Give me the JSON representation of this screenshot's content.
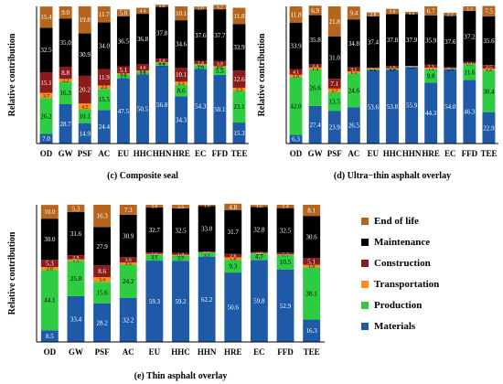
{
  "legend": {
    "items": [
      {
        "label": "End of life",
        "color": "#b5651d"
      },
      {
        "label": "Maintenance",
        "color": "#000000"
      },
      {
        "label": "Construction",
        "color": "#8b1a1a"
      },
      {
        "label": "Transportation",
        "color": "#ff8c1a"
      },
      {
        "label": "Production",
        "color": "#2ecc40"
      },
      {
        "label": "Materials",
        "color": "#1f5aa8"
      }
    ]
  },
  "chart_data": [
    {
      "type": "bar",
      "stacked": true,
      "title": "(c) Composite seal",
      "ylabel": "Relative contribution",
      "ylim": [
        0,
        100
      ],
      "categories": [
        "OD",
        "GW",
        "PSF",
        "AC",
        "EU",
        "HHC",
        "HHN",
        "HRE",
        "EC",
        "FFD",
        "TEE"
      ],
      "series": [
        {
          "name": "Materials",
          "color": "#1f5aa8",
          "values": [
            7.0,
            28.7,
            14.9,
            24.4,
            47.5,
            50.5,
            56.8,
            34.3,
            54.3,
            50.1,
            15.3
          ]
        },
        {
          "name": "Production",
          "color": "#2ecc40",
          "values": [
            26.2,
            16.3,
            10.1,
            15.5,
            2.9,
            1.9,
            1.9,
            8.6,
            2.9,
            5.5,
            23.1
          ]
        },
        {
          "name": "Transportation",
          "color": "#ff8c1a",
          "values": [
            3.7,
            2.2,
            4.2,
            2.5,
            0.8,
            0.8,
            0.6,
            2.3,
            0.7,
            0.8,
            2.3
          ]
        },
        {
          "name": "Construction",
          "color": "#8b1a1a",
          "values": [
            15.1,
            8.8,
            20.2,
            11.9,
            5.1,
            4.6,
            2.6,
            10.1,
            2.4,
            3.8,
            12.6
          ]
        },
        {
          "name": "Maintenance",
          "color": "#000000",
          "values": [
            32.5,
            35.0,
            30.9,
            34.0,
            36.5,
            36.8,
            37.8,
            34.6,
            37.6,
            37.7,
            33.9
          ]
        },
        {
          "name": "End of life",
          "color": "#b5651d",
          "values": [
            15.4,
            9.0,
            19.8,
            11.7,
            5.0,
            4.4,
            1.6,
            10.1,
            2.0,
            3.2,
            11.8
          ]
        }
      ]
    },
    {
      "type": "bar",
      "stacked": true,
      "title": "(d) Ultra−thin asphalt overlay",
      "ylabel": "Relative contribution",
      "ylim": [
        0,
        100
      ],
      "categories": [
        "OD",
        "GW",
        "PSF",
        "AC",
        "EU",
        "HHC",
        "HHN",
        "HRE",
        "EC",
        "FFD",
        "TEE"
      ],
      "series": [
        {
          "name": "Materials",
          "color": "#1f5aa8",
          "values": [
            6.3,
            27.4,
            23.9,
            26.5,
            53.6,
            53.8,
            55.9,
            44.3,
            54.0,
            46.3,
            22.9
          ]
        },
        {
          "name": "Production",
          "color": "#2ecc40",
          "values": [
            42.0,
            26.6,
            13.5,
            24.6,
            0.5,
            0.6,
            0.3,
            9.8,
            0.4,
            11.6,
            30.4
          ]
        },
        {
          "name": "Transportation",
          "color": "#ff8c1a",
          "values": [
            1.9,
            1.4,
            2.7,
            1.5,
            0.8,
            0.6,
            0.3,
            1.1,
            0.5,
            0.5,
            1.4
          ]
        },
        {
          "name": "Construction",
          "color": "#8b1a1a",
          "values": [
            4.1,
            2.4,
            7.1,
            3.1,
            0.5,
            1.6,
            0.1,
            2.3,
            0.7,
            1.1,
            2.5
          ]
        },
        {
          "name": "Maintenance",
          "color": "#000000",
          "values": [
            33.9,
            35.8,
            31.0,
            34.8,
            37.4,
            37.8,
            37.9,
            35.9,
            37.6,
            37.2,
            35.6
          ]
        },
        {
          "name": "End of life",
          "color": "#b5651d",
          "values": [
            11.8,
            6.9,
            21.8,
            9.4,
            2.8,
            3.8,
            1.5,
            6.7,
            2.2,
            3.3,
            7.5
          ]
        }
      ]
    },
    {
      "type": "bar",
      "stacked": true,
      "title": "(e) Thin asphalt overlay",
      "ylabel": "Relative contribution",
      "ylim": [
        0,
        100
      ],
      "categories": [
        "OD",
        "GW",
        "PSF",
        "AC",
        "EU",
        "HHC",
        "HHN",
        "HRE",
        "EC",
        "FFD",
        "TEE"
      ],
      "series": [
        {
          "name": "Materials",
          "color": "#1f5aa8",
          "values": [
            8.5,
            33.4,
            28.2,
            32.2,
            59.3,
            59.2,
            62.2,
            50.6,
            59.8,
            52.9,
            16.3
          ]
        },
        {
          "name": "Production",
          "color": "#2ecc40",
          "values": [
            44.1,
            25.8,
            15.6,
            24.2,
            4.5,
            3.7,
            3.1,
            9.3,
            4.7,
            10.5,
            38.1
          ]
        },
        {
          "name": "Transportation",
          "color": "#ff8c1a",
          "values": [
            2.0,
            1.1,
            3.4,
            1.5,
            0.4,
            0.6,
            0.1,
            1.8,
            0.3,
            0.4,
            1.8
          ]
        },
        {
          "name": "Construction",
          "color": "#8b1a1a",
          "values": [
            5.3,
            2.9,
            8.6,
            3.9,
            1.1,
            1.4,
            0.6,
            2.6,
            0.8,
            1.3,
            5.1
          ]
        },
        {
          "name": "Maintenance",
          "color": "#000000",
          "values": [
            30.0,
            31.6,
            27.9,
            30.9,
            32.7,
            32.5,
            33.0,
            31.7,
            32.8,
            32.5,
            30.6
          ]
        },
        {
          "name": "End of life",
          "color": "#b5651d",
          "values": [
            10.0,
            5.3,
            16.3,
            7.3,
            2.0,
            2.6,
            1.0,
            4.8,
            1.5,
            2.4,
            8.1
          ]
        }
      ]
    }
  ]
}
